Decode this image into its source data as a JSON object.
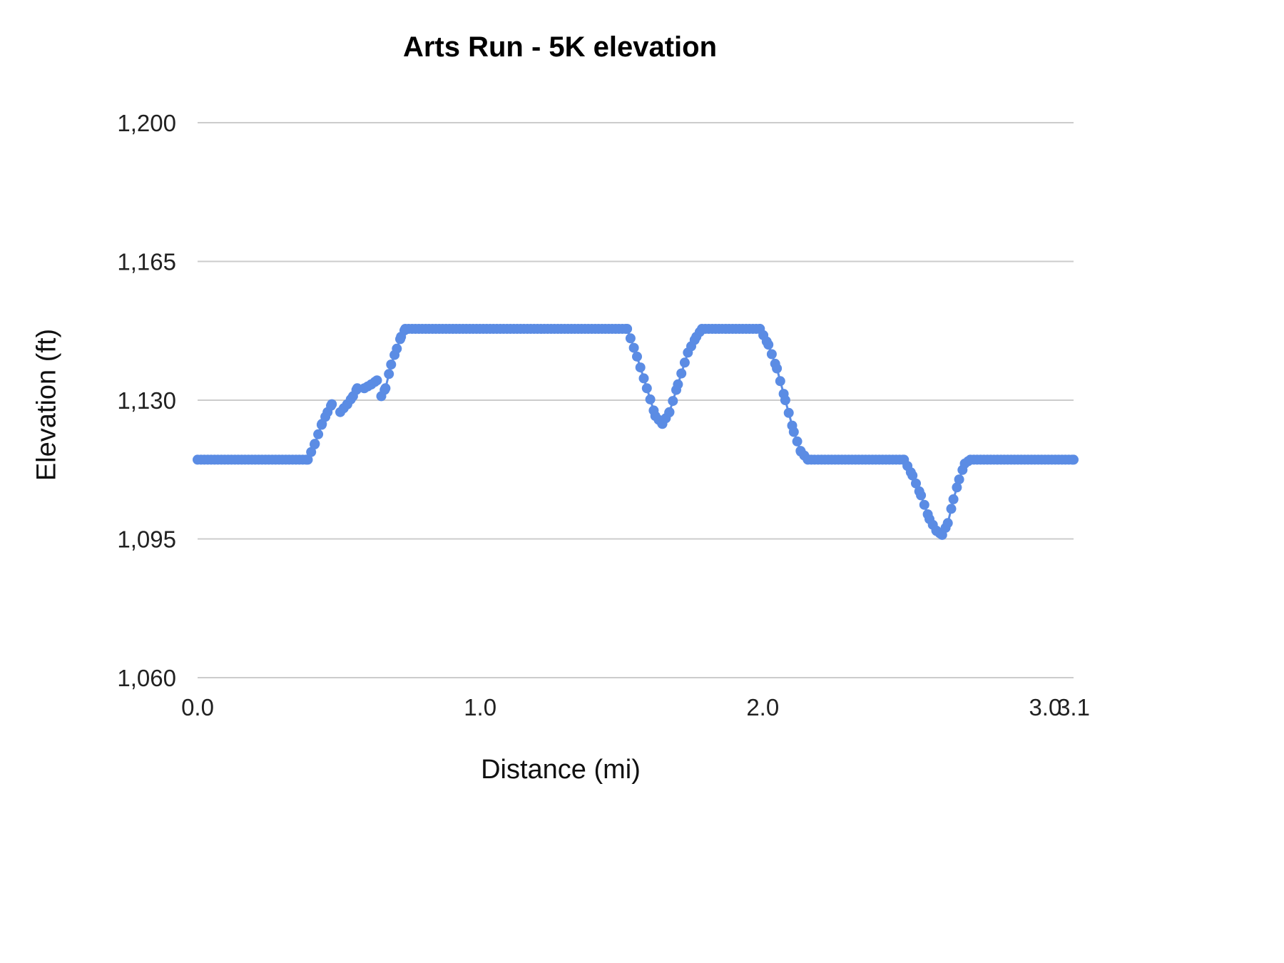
{
  "chart_data": {
    "type": "scatter",
    "title": "Arts Run - 5K elevation",
    "xlabel": "Distance (mi)",
    "ylabel": "Elevation (ft)",
    "xlim": [
      0.0,
      3.1
    ],
    "ylim": [
      1060,
      1200
    ],
    "yticks": [
      1060,
      1095,
      1130,
      1165,
      1200
    ],
    "ytick_labels": [
      "1,060",
      "1,095",
      "1,130",
      "1,165",
      "1,200"
    ],
    "xticks": [
      0.0,
      1.0,
      2.0,
      3.0,
      3.1
    ],
    "xtick_labels": [
      "0.0",
      "1.0",
      "2.0",
      "3.0",
      "3.1"
    ],
    "grid": true,
    "legend": "none",
    "marker_color": "#5b8ce4",
    "grid_color": "#cccccc",
    "text_color": "#212121",
    "point_spacing_mi": 0.012,
    "segments": [
      [
        [
          0.0,
          1115
        ],
        [
          0.39,
          1115
        ],
        [
          0.415,
          1119
        ],
        [
          0.44,
          1124
        ],
        [
          0.46,
          1127
        ],
        [
          0.475,
          1129
        ]
      ],
      [
        [
          0.505,
          1127
        ],
        [
          0.53,
          1129
        ],
        [
          0.55,
          1131
        ],
        [
          0.565,
          1133
        ]
      ],
      [
        [
          0.59,
          1133
        ],
        [
          0.615,
          1134
        ],
        [
          0.635,
          1135
        ]
      ],
      [
        [
          0.65,
          1131
        ],
        [
          0.665,
          1133
        ],
        [
          0.685,
          1139
        ],
        [
          0.705,
          1143
        ],
        [
          0.72,
          1146
        ],
        [
          0.735,
          1148
        ],
        [
          1.52,
          1148
        ],
        [
          1.555,
          1141
        ],
        [
          1.59,
          1133
        ],
        [
          1.62,
          1126
        ],
        [
          1.645,
          1124
        ],
        [
          1.67,
          1127
        ],
        [
          1.7,
          1134
        ],
        [
          1.735,
          1142
        ],
        [
          1.765,
          1146
        ],
        [
          1.785,
          1148
        ],
        [
          1.99,
          1148
        ],
        [
          2.02,
          1144
        ],
        [
          2.05,
          1138
        ],
        [
          2.08,
          1130
        ],
        [
          2.11,
          1122
        ],
        [
          2.135,
          1117
        ],
        [
          2.16,
          1115
        ],
        [
          2.5,
          1115
        ],
        [
          2.53,
          1111
        ],
        [
          2.56,
          1106
        ],
        [
          2.59,
          1100
        ],
        [
          2.615,
          1097
        ],
        [
          2.635,
          1096
        ],
        [
          2.655,
          1099
        ],
        [
          2.675,
          1105
        ],
        [
          2.695,
          1110
        ],
        [
          2.715,
          1114
        ],
        [
          2.735,
          1115
        ],
        [
          3.1,
          1115
        ]
      ]
    ]
  }
}
